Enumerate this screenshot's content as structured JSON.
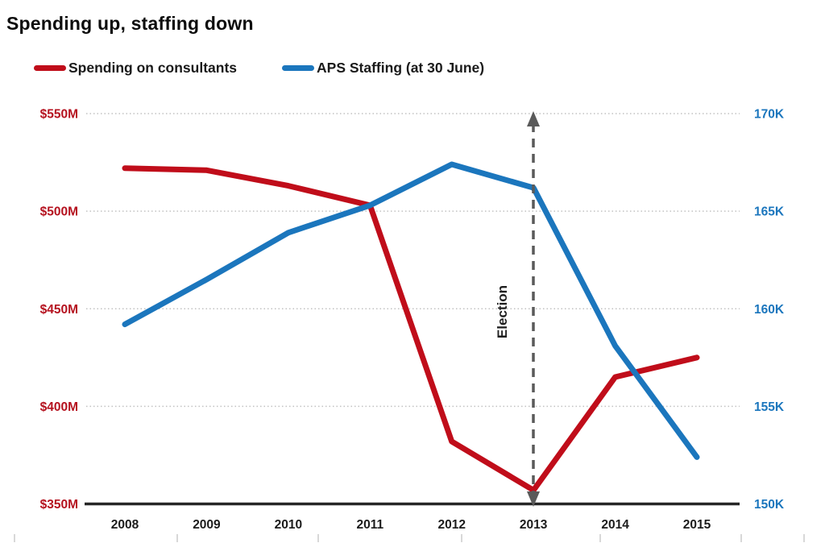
{
  "title": "Spending up, staffing down",
  "legend": [
    {
      "label": "Spending on consultants",
      "color": "#c00d1a"
    },
    {
      "label": "APS Staffing (at 30 June)",
      "color": "#1b76bd"
    }
  ],
  "chart_data": {
    "type": "line",
    "title": "Spending up, staffing down",
    "categories": [
      "2008",
      "2009",
      "2010",
      "2011",
      "2012",
      "2013",
      "2014",
      "2015"
    ],
    "series": [
      {
        "name": "Spending on consultants",
        "axis": "left",
        "unit": "$M",
        "color": "#c00d1a",
        "values": [
          522,
          521,
          513,
          503,
          382,
          357,
          415,
          425
        ]
      },
      {
        "name": "APS Staffing (at 30 June)",
        "axis": "right",
        "unit": "K",
        "color": "#1b76bd",
        "values": [
          159.2,
          161.5,
          163.9,
          165.3,
          167.4,
          166.2,
          158.1,
          152.4
        ]
      }
    ],
    "left_axis": {
      "ticks": [
        "$550M",
        "$500M",
        "$450M",
        "$400M",
        "$350M"
      ],
      "values": [
        550,
        500,
        450,
        400,
        350
      ],
      "min": 350,
      "max": 550,
      "color": "#b5121f"
    },
    "right_axis": {
      "ticks": [
        "170K",
        "165K",
        "160K",
        "155K",
        "150K"
      ],
      "values": [
        170,
        165,
        160,
        155,
        150
      ],
      "min": 150,
      "max": 170,
      "color": "#1b76bd"
    },
    "annotation": {
      "label": "Election",
      "x_category": "2013",
      "style": "dashed double-headed vertical arrow"
    },
    "grid": "dotted horizontal gridlines",
    "legend_position": "top-left"
  },
  "colors": {
    "spending_line": "#c00d1a",
    "staffing_line": "#1b76bd",
    "left_axis_labels": "#b5121f",
    "right_axis_labels": "#1b76bd",
    "gridline": "#c2c2c2",
    "baseline": "#262626",
    "election_arrow": "#5a5a5a",
    "year_labels": "#1c1c1c"
  }
}
